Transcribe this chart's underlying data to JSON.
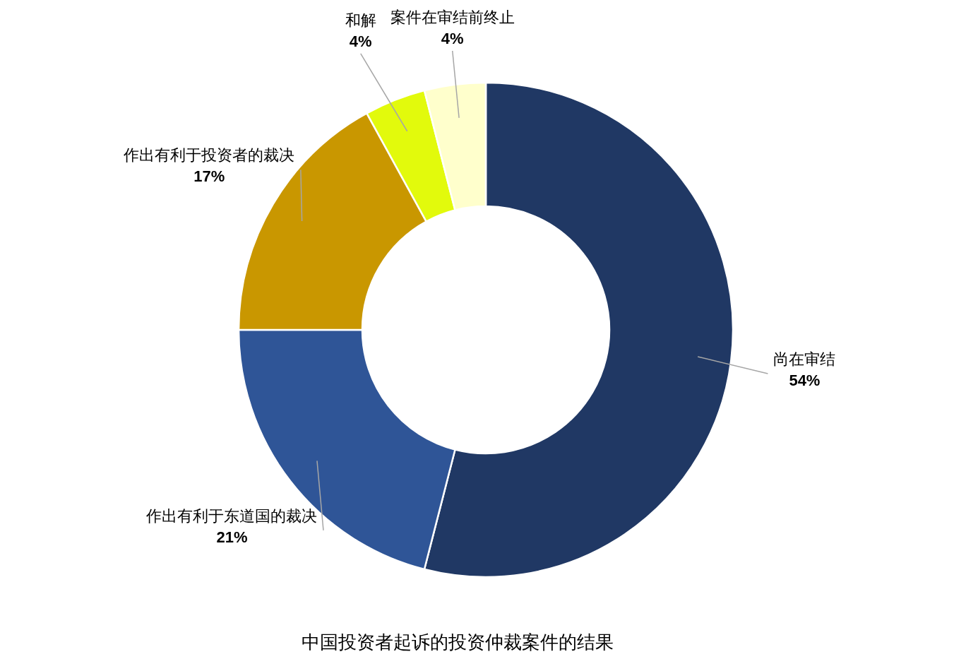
{
  "chart_data": {
    "type": "donut",
    "title": "中国投资者起诉的投资仲裁案件的结果",
    "categories": [
      "尚在审结",
      "作出有利于东道国的裁决",
      "作出有利于投资者的裁决",
      "和解",
      "案件在审结前终止"
    ],
    "values": [
      54,
      21,
      17,
      4,
      4
    ],
    "value_labels": [
      "54%",
      "21%",
      "17%",
      "4%",
      "4%"
    ],
    "colors": [
      "#203864",
      "#2f5597",
      "#c99700",
      "#e2fa0c",
      "#ffffcc"
    ],
    "legend": false
  }
}
